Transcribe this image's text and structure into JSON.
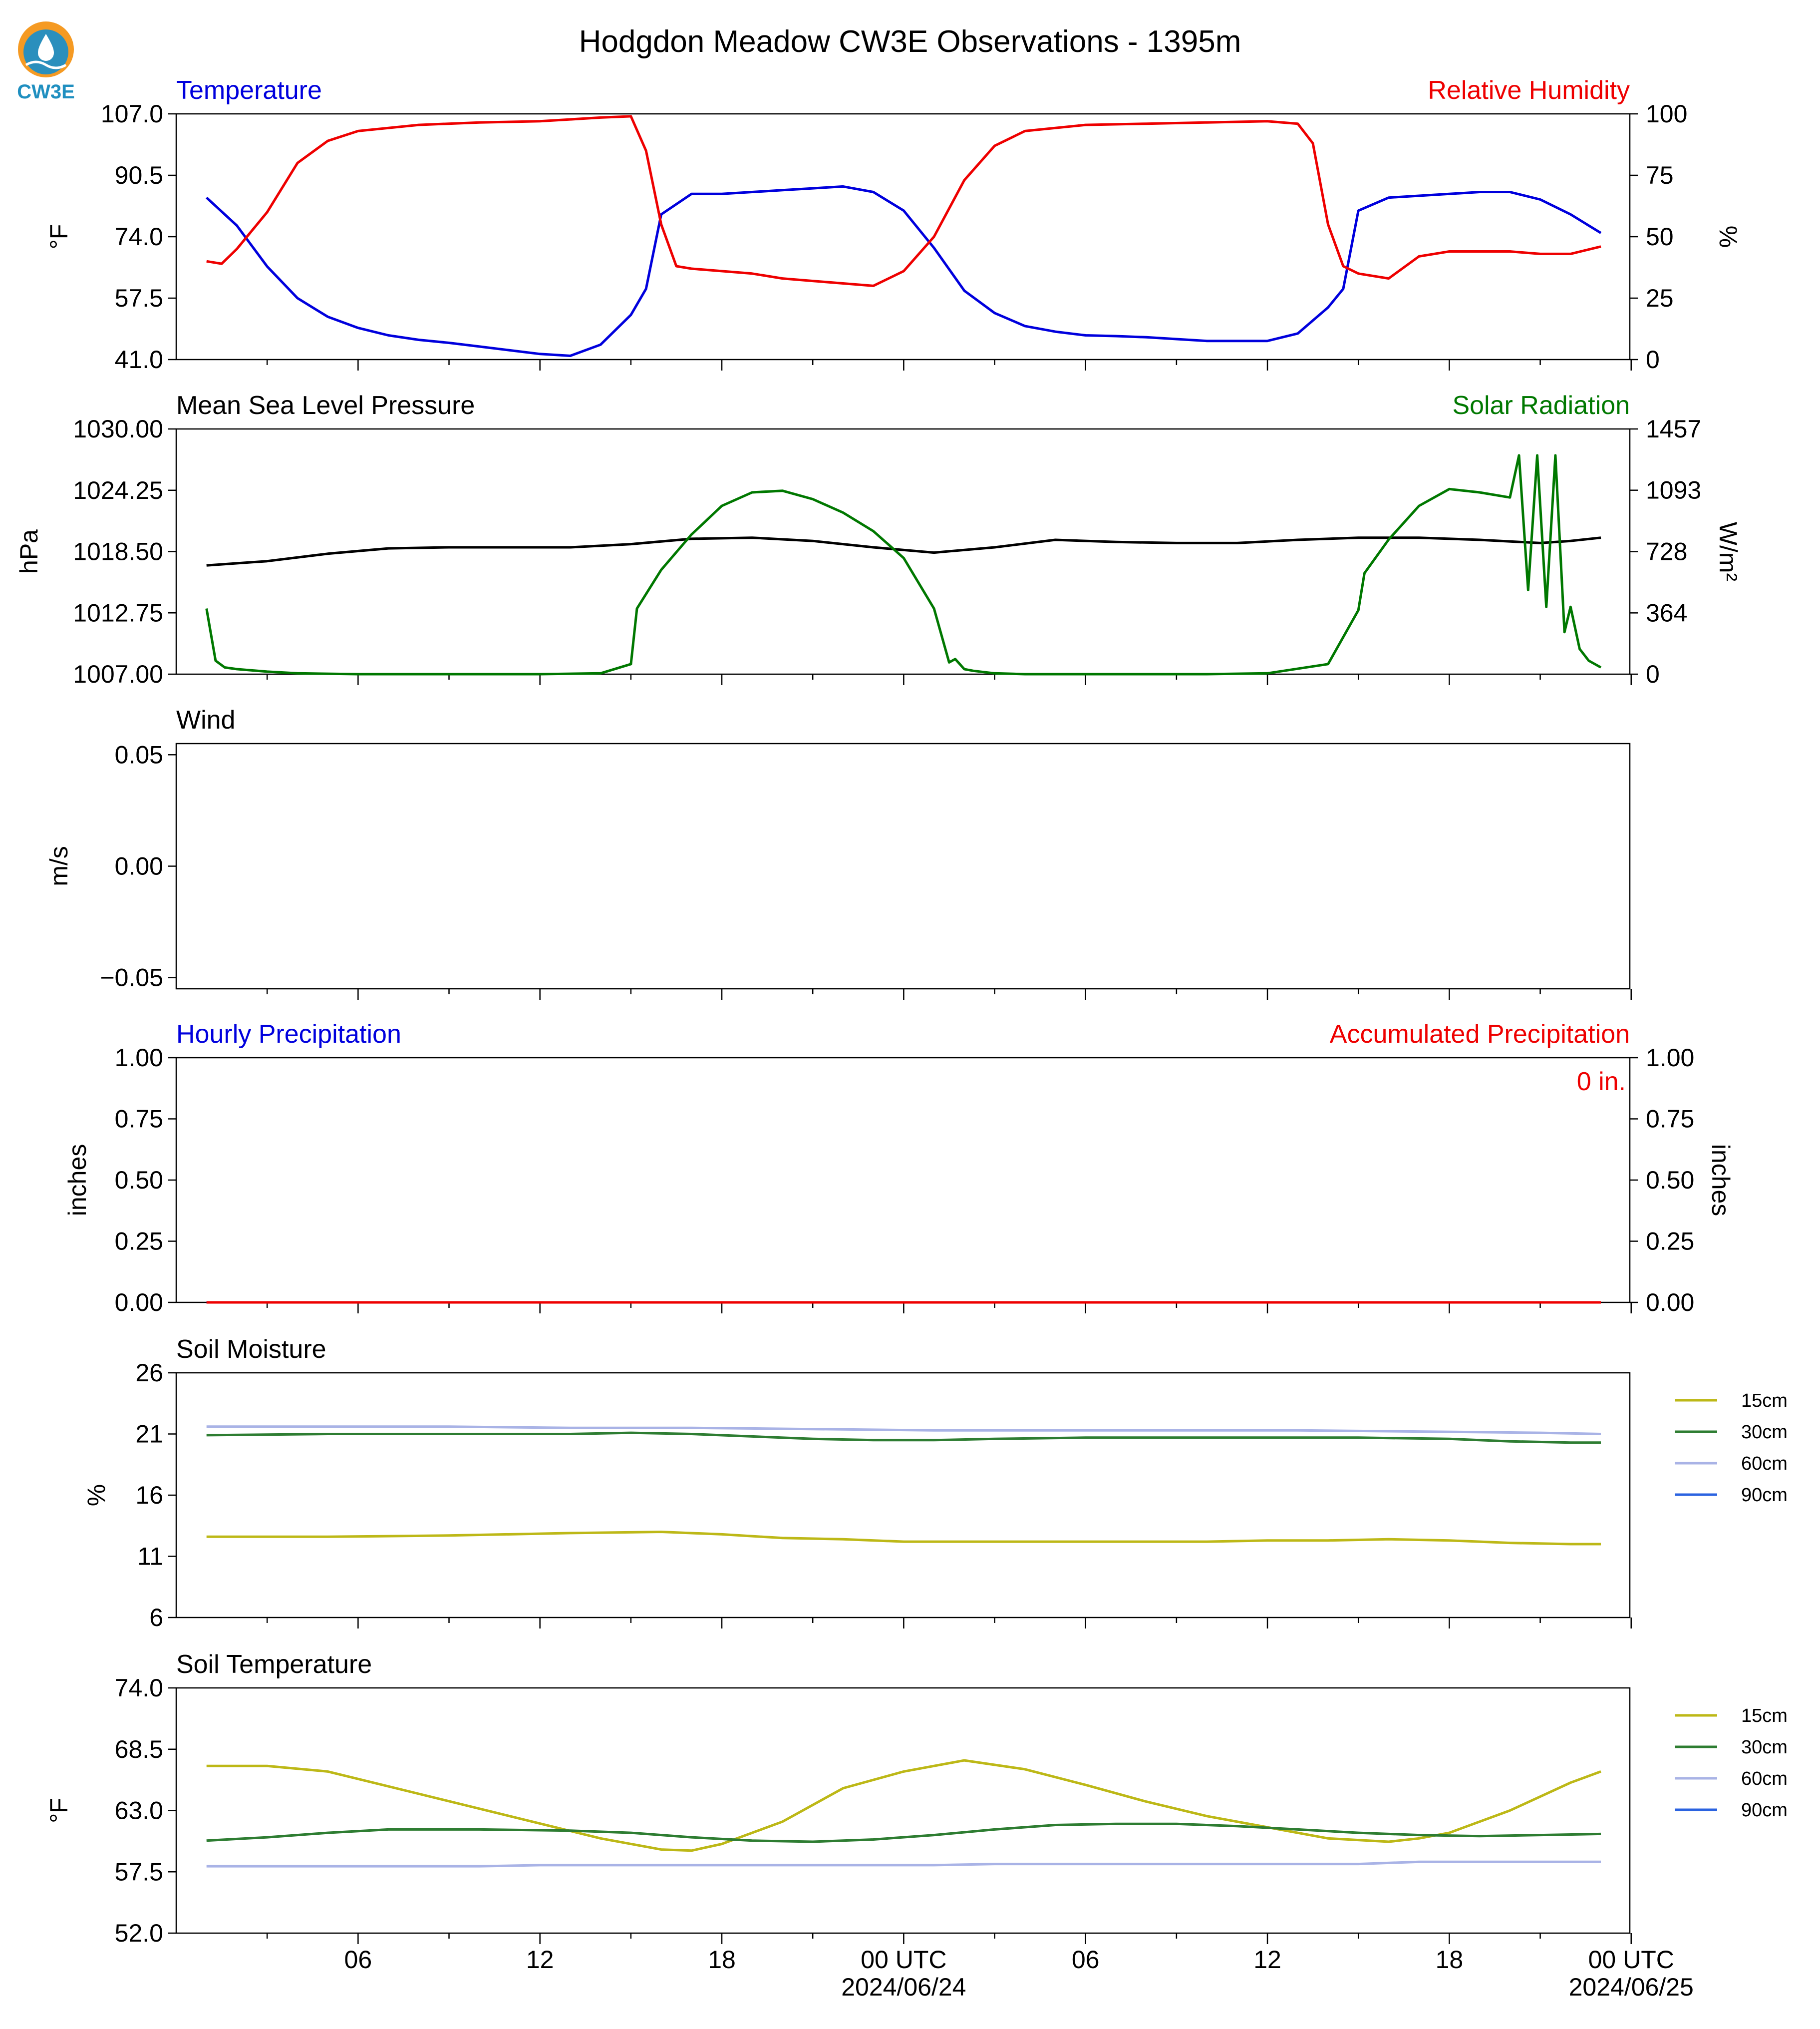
{
  "title": "Hodgdon Meadow CW3E Observations - 1395m",
  "logo_text": "CW3E",
  "colors": {
    "temperature": "#0000dd",
    "humidity": "#ee0000",
    "pressure": "#000000",
    "solar": "#007800",
    "precip_hourly": "#0000dd",
    "precip_acc": "#ee0000",
    "soil_15": "#bdb817",
    "soil_30": "#2e7d32",
    "soil_60": "#a9b3e6",
    "soil_90": "#2b63e0"
  },
  "x_axis": {
    "tick_labels": [
      "06",
      "12",
      "18",
      "00 UTC",
      "06",
      "12",
      "18",
      "00 UTC"
    ],
    "date_labels": [
      "2024/06/24",
      "2024/06/25"
    ]
  },
  "chart_data": [
    {
      "type": "line",
      "title": "Temperature",
      "right_title": "Relative Humidity",
      "ylabel": "°F",
      "y2label": "%",
      "ylim": [
        41.0,
        107.0
      ],
      "y2lim": [
        0,
        100
      ],
      "yticks": [
        "41.0",
        "57.5",
        "74.0",
        "90.5",
        "107.0"
      ],
      "y2ticks": [
        "0",
        "25",
        "50",
        "75",
        "100"
      ],
      "x_hours_range": [
        1,
        47
      ],
      "series": [
        {
          "name": "Temperature",
          "axis": "left",
          "x": [
            1,
            2,
            3,
            4,
            5,
            6,
            7,
            8,
            9,
            10,
            11,
            12,
            13,
            14,
            15,
            15.5,
            16,
            17,
            18,
            19,
            20,
            21,
            22,
            23,
            24,
            25,
            26,
            27,
            28,
            29,
            30,
            31,
            32,
            33,
            34,
            35,
            36,
            37,
            38,
            38.5,
            39,
            40,
            41,
            42,
            43,
            44,
            45,
            46,
            47
          ],
          "y": [
            84.5,
            77.0,
            66.0,
            57.5,
            52.5,
            49.5,
            47.5,
            46.3,
            45.5,
            44.5,
            43.5,
            42.5,
            42.0,
            45.0,
            53.0,
            60.0,
            80.0,
            85.5,
            85.5,
            86.0,
            86.5,
            87.0,
            87.5,
            86.0,
            81.0,
            71.0,
            59.5,
            53.5,
            50.0,
            48.5,
            47.5,
            47.3,
            47.0,
            46.5,
            46.0,
            46.0,
            46.0,
            48.0,
            55.0,
            60.0,
            81.0,
            84.5,
            85.0,
            85.5,
            86.0,
            86.0,
            84.0,
            80.0,
            75.0
          ]
        },
        {
          "name": "Relative Humidity",
          "axis": "right",
          "x": [
            1,
            1.5,
            2,
            3,
            4,
            5,
            6,
            8,
            10,
            12,
            14,
            15,
            15.5,
            16,
            16.5,
            17,
            18,
            19,
            20,
            21,
            22,
            23,
            24,
            25,
            26,
            27,
            28,
            30,
            32,
            34,
            36,
            37,
            37.5,
            38,
            38.5,
            39,
            40,
            41,
            42,
            43,
            44,
            45,
            46,
            47
          ],
          "y": [
            40,
            39,
            45,
            60,
            80,
            89,
            93,
            95.5,
            96.5,
            97,
            98.5,
            99,
            85,
            55,
            38,
            37,
            36,
            35,
            33,
            32,
            31,
            30,
            36,
            50,
            73,
            87,
            93,
            95.5,
            96,
            96.5,
            97,
            96,
            88,
            55,
            38,
            35,
            33,
            42,
            44,
            44,
            44,
            43,
            43,
            46
          ]
        },
        {
          "name": "",
          "axis": "right",
          "x": [],
          "y": []
        }
      ]
    },
    {
      "type": "line",
      "title": "Mean Sea Level Pressure",
      "right_title": "Solar Radiation",
      "ylabel": "hPa",
      "y2label": "W/m²",
      "ylim": [
        1007.0,
        1030.0
      ],
      "y2lim": [
        0,
        1457
      ],
      "yticks": [
        "1007.00",
        "1012.75",
        "1018.50",
        "1024.25",
        "1030.00"
      ],
      "y2ticks": [
        "0",
        "364",
        "728",
        "1093",
        "1457"
      ],
      "x_hours_range": [
        1,
        47
      ],
      "series": [
        {
          "name": "Mean Sea Level Pressure",
          "axis": "left",
          "x": [
            1,
            3,
            5,
            7,
            9,
            11,
            13,
            15,
            17,
            19,
            21,
            23,
            25,
            27,
            29,
            31,
            33,
            35,
            37,
            39,
            41,
            43,
            45,
            46,
            47
          ],
          "y": [
            1017.2,
            1017.6,
            1018.3,
            1018.8,
            1018.9,
            1018.9,
            1018.9,
            1019.2,
            1019.7,
            1019.8,
            1019.5,
            1018.9,
            1018.4,
            1018.9,
            1019.6,
            1019.4,
            1019.3,
            1019.3,
            1019.6,
            1019.8,
            1019.8,
            1019.6,
            1019.3,
            1019.5,
            1019.8
          ]
        },
        {
          "name": "Solar Radiation",
          "axis": "right",
          "x": [
            1,
            1.3,
            1.6,
            2,
            3,
            4,
            6,
            8,
            10,
            12,
            14,
            15,
            15.2,
            16,
            17,
            18,
            19,
            20,
            21,
            22,
            23,
            24,
            25,
            25.5,
            25.7,
            26,
            26.3,
            27,
            28,
            30,
            32,
            34,
            36,
            38,
            39,
            39.2,
            40,
            41,
            42,
            43,
            44,
            44.3,
            44.6,
            44.9,
            45.2,
            45.5,
            45.8,
            46,
            46.3,
            46.6,
            47
          ],
          "y": [
            390,
            80,
            40,
            30,
            15,
            5,
            0,
            0,
            0,
            0,
            5,
            60,
            390,
            620,
            830,
            1000,
            1080,
            1090,
            1040,
            960,
            850,
            690,
            390,
            70,
            90,
            30,
            20,
            5,
            0,
            0,
            0,
            0,
            5,
            60,
            380,
            600,
            800,
            1000,
            1100,
            1080,
            1050,
            1300,
            500,
            1300,
            400,
            1300,
            250,
            400,
            150,
            80,
            40
          ]
        }
      ]
    },
    {
      "type": "line",
      "title": "Wind",
      "ylabel": "m/s",
      "ylim": [
        -0.055,
        0.055
      ],
      "yticks": [
        "−0.05",
        "0.00",
        "0.05"
      ],
      "series": []
    },
    {
      "type": "line",
      "title": "Hourly Precipitation",
      "right_title": "Accumulated Precipitation",
      "ylabel": "inches",
      "y2label": "inches",
      "ylim": [
        0.0,
        1.0
      ],
      "y2lim": [
        0.0,
        1.0
      ],
      "yticks": [
        "0.00",
        "0.25",
        "0.50",
        "0.75",
        "1.00"
      ],
      "y2ticks": [
        "0.00",
        "0.25",
        "0.50",
        "0.75",
        "1.00"
      ],
      "annotation": "0 in.",
      "x_hours_range": [
        1,
        47
      ],
      "series": [
        {
          "name": "Hourly Precipitation",
          "axis": "left",
          "x": [
            1,
            47
          ],
          "y": [
            0,
            0
          ]
        },
        {
          "name": "Accumulated Precipitation",
          "axis": "right",
          "x": [
            1,
            47
          ],
          "y": [
            0,
            0
          ]
        }
      ]
    },
    {
      "type": "line",
      "title": "Soil Moisture",
      "ylabel": "%",
      "ylim": [
        6,
        26
      ],
      "yticks": [
        "6",
        "11",
        "16",
        "21",
        "26"
      ],
      "legend": [
        "15cm",
        "30cm",
        "60cm",
        "90cm"
      ],
      "legend_position": "right",
      "x_hours_range": [
        1,
        47
      ],
      "series": [
        {
          "name": "15cm",
          "x": [
            1,
            5,
            9,
            13,
            16,
            18,
            20,
            22,
            24,
            26,
            28,
            30,
            32,
            34,
            36,
            38,
            40,
            42,
            44,
            46,
            47
          ],
          "y": [
            12.6,
            12.6,
            12.7,
            12.9,
            13.0,
            12.8,
            12.5,
            12.4,
            12.2,
            12.2,
            12.2,
            12.2,
            12.2,
            12.2,
            12.3,
            12.3,
            12.4,
            12.3,
            12.1,
            12.0,
            12.0
          ]
        },
        {
          "name": "30cm",
          "x": [
            1,
            5,
            9,
            13,
            15,
            17,
            19,
            21,
            23,
            25,
            27,
            30,
            33,
            36,
            39,
            42,
            44,
            46,
            47
          ],
          "y": [
            20.9,
            21.0,
            21.0,
            21.0,
            21.1,
            21.0,
            20.8,
            20.6,
            20.5,
            20.5,
            20.6,
            20.7,
            20.7,
            20.7,
            20.7,
            20.6,
            20.4,
            20.3,
            20.3
          ]
        },
        {
          "name": "60cm",
          "x": [
            1,
            5,
            9,
            13,
            17,
            21,
            25,
            29,
            33,
            37,
            41,
            45,
            47
          ],
          "y": [
            21.6,
            21.6,
            21.6,
            21.5,
            21.5,
            21.4,
            21.3,
            21.3,
            21.3,
            21.3,
            21.2,
            21.1,
            21.0
          ]
        },
        {
          "name": "90cm",
          "x": [],
          "y": []
        }
      ]
    },
    {
      "type": "line",
      "title": "Soil Temperature",
      "ylabel": "°F",
      "ylim": [
        52.0,
        74.0
      ],
      "yticks": [
        "52.0",
        "57.5",
        "63.0",
        "68.5",
        "74.0"
      ],
      "legend": [
        "15cm",
        "30cm",
        "60cm",
        "90cm"
      ],
      "legend_position": "right",
      "x_hours_range": [
        1,
        47
      ],
      "series": [
        {
          "name": "15cm",
          "x": [
            1,
            3,
            5,
            8,
            11,
            14,
            16,
            17,
            18,
            20,
            22,
            24,
            26,
            28,
            30,
            32,
            34,
            36,
            38,
            40,
            41,
            42,
            44,
            46,
            47
          ],
          "y": [
            67.0,
            67.0,
            66.5,
            64.5,
            62.5,
            60.5,
            59.5,
            59.4,
            60.0,
            62.0,
            65.0,
            66.5,
            67.5,
            66.7,
            65.3,
            63.8,
            62.5,
            61.5,
            60.5,
            60.2,
            60.5,
            61.0,
            63.0,
            65.5,
            66.5
          ]
        },
        {
          "name": "30cm",
          "x": [
            1,
            3,
            5,
            7,
            10,
            13,
            15,
            17,
            19,
            21,
            23,
            25,
            27,
            29,
            31,
            33,
            35,
            37,
            39,
            41,
            43,
            45,
            47
          ],
          "y": [
            60.3,
            60.6,
            61.0,
            61.3,
            61.3,
            61.2,
            61.0,
            60.6,
            60.3,
            60.2,
            60.4,
            60.8,
            61.3,
            61.7,
            61.8,
            61.8,
            61.6,
            61.3,
            61.0,
            60.8,
            60.7,
            60.8,
            60.9
          ]
        },
        {
          "name": "60cm",
          "x": [
            1,
            10,
            12,
            20,
            25,
            27,
            35,
            39,
            41,
            47
          ],
          "y": [
            58.0,
            58.0,
            58.1,
            58.1,
            58.1,
            58.2,
            58.2,
            58.2,
            58.4,
            58.4
          ]
        },
        {
          "name": "90cm",
          "x": [],
          "y": []
        }
      ]
    }
  ]
}
